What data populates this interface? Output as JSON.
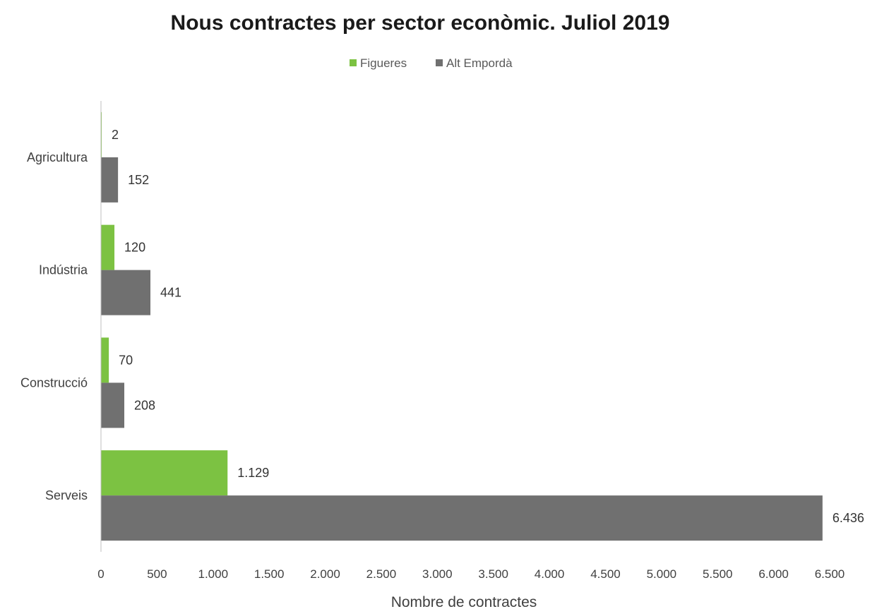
{
  "chart_data": {
    "type": "bar",
    "orientation": "horizontal",
    "title": "Nous contractes per sector econòmic. Juliol 2019",
    "xlabel": "Nombre de contractes",
    "ylabel": "",
    "categories": [
      "Agricultura",
      "Indústria",
      "Construcció",
      "Serveis"
    ],
    "series": [
      {
        "name": "Figueres",
        "color": "#7cc242",
        "values": [
          2,
          120,
          70,
          1129
        ],
        "labels": [
          "2",
          "120",
          "70",
          "1.129"
        ]
      },
      {
        "name": "Alt Empordà",
        "color": "#707070",
        "values": [
          152,
          441,
          208,
          6436
        ],
        "labels": [
          "152",
          "441",
          "208",
          "6.436"
        ]
      }
    ],
    "xlim": [
      0,
      6500
    ],
    "ticks": [
      0,
      500,
      1000,
      1500,
      2000,
      2500,
      3000,
      3500,
      4000,
      4500,
      5000,
      5500,
      6000,
      6500
    ],
    "tick_labels": [
      "0",
      "500",
      "1.000",
      "1.500",
      "2.000",
      "2.500",
      "3.000",
      "3.500",
      "4.000",
      "4.500",
      "5.000",
      "5.500",
      "6.000",
      "6.500"
    ],
    "legend_position": "top-center",
    "grid": false
  }
}
